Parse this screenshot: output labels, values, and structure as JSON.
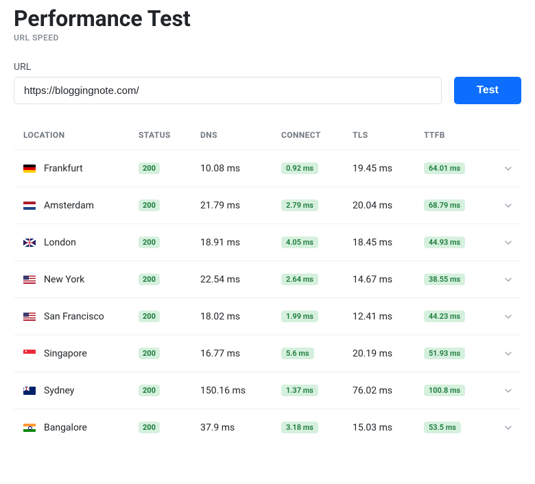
{
  "page": {
    "title": "Performance Test",
    "subtitle": "URL SPEED"
  },
  "form": {
    "url_label": "URL",
    "url_value": "https://bloggingnote.com/",
    "test_button": "Test"
  },
  "table": {
    "columns": {
      "location": "LOCATION",
      "status": "STATUS",
      "dns": "DNS",
      "connect": "CONNECT",
      "tls": "TLS",
      "ttfb": "TTFB"
    },
    "status_badge_bg": "#d6f0de",
    "status_badge_fg": "#1a7a3a",
    "rows": [
      {
        "flag": "de",
        "location": "Frankfurt",
        "status": "200",
        "dns": "10.08 ms",
        "connect": "0.92 ms",
        "tls": "19.45 ms",
        "ttfb": "64.01 ms"
      },
      {
        "flag": "nl",
        "location": "Amsterdam",
        "status": "200",
        "dns": "21.79 ms",
        "connect": "2.79 ms",
        "tls": "20.04 ms",
        "ttfb": "68.79 ms"
      },
      {
        "flag": "gb",
        "location": "London",
        "status": "200",
        "dns": "18.91 ms",
        "connect": "4.05 ms",
        "tls": "18.45 ms",
        "ttfb": "44.93 ms"
      },
      {
        "flag": "us",
        "location": "New York",
        "status": "200",
        "dns": "22.54 ms",
        "connect": "2.64 ms",
        "tls": "14.67 ms",
        "ttfb": "38.55 ms"
      },
      {
        "flag": "us",
        "location": "San Francisco",
        "status": "200",
        "dns": "18.02 ms",
        "connect": "1.99 ms",
        "tls": "12.41 ms",
        "ttfb": "44.23 ms"
      },
      {
        "flag": "sg",
        "location": "Singapore",
        "status": "200",
        "dns": "16.77 ms",
        "connect": "5.6 ms",
        "tls": "20.19 ms",
        "ttfb": "51.93 ms"
      },
      {
        "flag": "au",
        "location": "Sydney",
        "status": "200",
        "dns": "150.16 ms",
        "connect": "1.37 ms",
        "tls": "76.02 ms",
        "ttfb": "100.8 ms"
      },
      {
        "flag": "in",
        "location": "Bangalore",
        "status": "200",
        "dns": "37.9 ms",
        "connect": "3.18 ms",
        "tls": "15.03 ms",
        "ttfb": "53.5 ms"
      }
    ]
  },
  "colors": {
    "primary": "#0d6efd",
    "text": "#212529",
    "muted": "#878e97",
    "border": "#eef0f2"
  }
}
